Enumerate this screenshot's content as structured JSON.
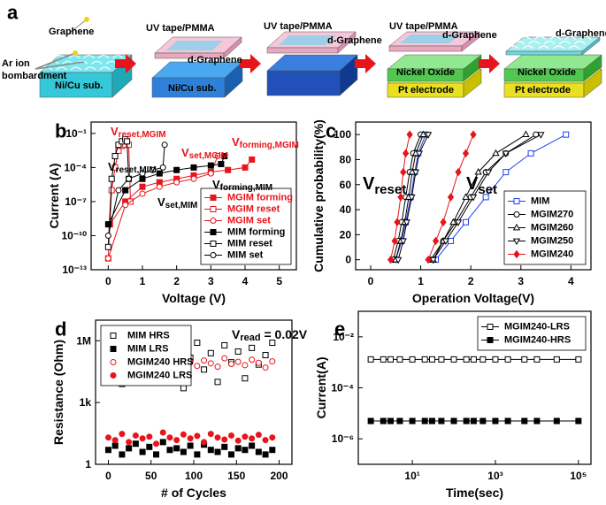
{
  "diagram": {
    "label": "a",
    "stages": [
      {
        "texts": [
          "Graphene",
          "Ar ion",
          "bombardment",
          "Ni/Cu sub."
        ]
      },
      {
        "texts": [
          "UV tape/PMMA",
          "d-Graphene",
          "Ni/Cu sub."
        ]
      },
      {
        "texts": [
          "UV tape/PMMA",
          "d-Graphene"
        ]
      },
      {
        "texts": [
          "UV tape/PMMA",
          "d-Graphene",
          "Nickel Oxide",
          "Pt electrode"
        ]
      },
      {
        "texts": [
          "d-Graphene",
          "Nickel Oxide",
          "Pt electrode"
        ]
      }
    ]
  },
  "chart_data": [
    {
      "type": "line",
      "label": "b",
      "x_label": "Voltage (V)",
      "y_label": "Current (A)",
      "xlim": [
        -0.5,
        5.5
      ],
      "xticks": [
        0,
        1,
        2,
        3,
        4,
        5
      ],
      "ylim": [
        1e-13,
        1
      ],
      "yscale": "log",
      "yticks": [
        {
          "value": 1e-13,
          "label": "10⁻¹³"
        },
        {
          "value": 1e-10,
          "label": "10⁻¹⁰"
        },
        {
          "value": 1e-07,
          "label": "10⁻⁷"
        },
        {
          "value": 0.0001,
          "label": "10⁻⁴"
        },
        {
          "value": 0.1,
          "label": "10⁻¹"
        }
      ],
      "legend": "lower right",
      "series": [
        {
          "name": "MGIM forming",
          "color": "#e8141b",
          "marker": "square",
          "filled": true,
          "x": [
            0.05,
            0.5,
            1,
            1.5,
            2,
            2.5,
            3,
            3.5,
            4,
            4.2
          ],
          "values": [
            1e-09,
            1e-07,
            2e-06,
            5e-06,
            1e-05,
            2e-05,
            4e-05,
            6e-05,
            0.0001,
            0.0005
          ]
        },
        {
          "name": "MGIM reset",
          "color": "#e8141b",
          "marker": "square",
          "filled": false,
          "x": [
            0,
            0.1,
            0.2,
            0.3,
            0.4,
            0.5,
            0.6,
            0.65
          ],
          "values": [
            1e-12,
            1e-06,
            0.0001,
            0.003,
            0.008,
            0.01,
            0.01,
            1e-07
          ]
        },
        {
          "name": "MGIM set",
          "color": "#e8141b",
          "marker": "circle",
          "filled": false,
          "x": [
            0,
            0.5,
            1,
            1.5,
            2,
            2.5,
            3,
            3.2
          ],
          "values": [
            1e-12,
            5e-08,
            5e-07,
            2e-06,
            5e-06,
            1e-05,
            3e-05,
            0.001
          ]
        },
        {
          "name": "MIM forming",
          "color": "#000000",
          "marker": "square",
          "filled": true,
          "x": [
            0,
            0.5,
            1,
            1.5,
            2,
            2.5,
            3,
            3.3,
            3.4
          ],
          "values": [
            1e-09,
            1e-06,
            1e-05,
            3e-05,
            6e-05,
            0.0001,
            0.00015,
            0.0002,
            0.001
          ]
        },
        {
          "name": "MIM reset",
          "color": "#000000",
          "marker": "square",
          "filled": false,
          "x": [
            0,
            0.1,
            0.2,
            0.3,
            0.4,
            0.5,
            0.55,
            0.6
          ],
          "values": [
            1e-11,
            1e-05,
            0.001,
            0.01,
            0.02,
            0.03,
            0.02,
            1e-05
          ]
        },
        {
          "name": "MIM set",
          "color": "#000000",
          "marker": "circle",
          "filled": false,
          "x": [
            0,
            0.3,
            0.6,
            1,
            1.3,
            1.6,
            1.65
          ],
          "values": [
            1e-10,
            1e-06,
            1e-05,
            3e-05,
            6e-05,
            0.0001,
            0.01
          ]
        }
      ],
      "annotations": [
        {
          "text": "V",
          "sub": "reset,MGIM",
          "color": "#e8141b"
        },
        {
          "text": "V",
          "sub": "set,MGIM",
          "color": "#e8141b"
        },
        {
          "text": "V",
          "sub": "forming,MGIM",
          "color": "#e8141b"
        },
        {
          "text": "V",
          "sub": "reset,MIM",
          "color": "#000000"
        },
        {
          "text": "V",
          "sub": "set,MIM",
          "color": "#000000"
        },
        {
          "text": "V",
          "sub": "forming,MIM",
          "color": "#000000"
        }
      ]
    },
    {
      "type": "line",
      "label": "c",
      "x_label": "Operation Voltage(V)",
      "y_label": "Cumulative probability(%)",
      "xlim": [
        -0.3,
        4.4
      ],
      "xticks": [
        0,
        1,
        2,
        3,
        4
      ],
      "ylim": [
        -8,
        110
      ],
      "yticks": [
        0,
        20,
        40,
        60,
        80,
        100
      ],
      "legend": "lower right",
      "series": [
        {
          "name": "MIM",
          "color": "#1f3ff0",
          "marker": "square",
          "filled": false,
          "x": [
            0.5,
            0.62,
            0.7,
            0.8,
            0.88,
            0.95,
            1.1,
            null,
            1.3,
            1.6,
            1.9,
            2.3,
            2.7,
            3.2,
            3.9
          ],
          "values": [
            0,
            15,
            30,
            50,
            70,
            85,
            100,
            null,
            0,
            15,
            30,
            50,
            70,
            85,
            100
          ]
        },
        {
          "name": "MGIM270",
          "color": "#000000",
          "marker": "circle",
          "filled": false,
          "x": [
            0.45,
            0.55,
            0.62,
            0.7,
            0.78,
            0.85,
            1.0,
            null,
            1.2,
            1.45,
            1.7,
            2.0,
            2.3,
            2.7,
            3.3
          ],
          "values": [
            0,
            15,
            30,
            50,
            70,
            85,
            100,
            null,
            0,
            15,
            30,
            50,
            70,
            85,
            100
          ]
        },
        {
          "name": "MGIM260",
          "color": "#000000",
          "marker": "triangle-up",
          "filled": false,
          "x": [
            0.5,
            0.6,
            0.68,
            0.76,
            0.83,
            0.9,
            1.05,
            null,
            1.25,
            1.45,
            1.65,
            1.9,
            2.15,
            2.5,
            3.1
          ],
          "values": [
            0,
            15,
            30,
            50,
            70,
            85,
            100,
            null,
            0,
            15,
            30,
            50,
            70,
            85,
            100
          ]
        },
        {
          "name": "MGIM250",
          "color": "#000000",
          "marker": "triangle-down",
          "filled": false,
          "x": [
            0.55,
            0.65,
            0.72,
            0.82,
            0.9,
            0.97,
            1.15,
            null,
            1.25,
            1.5,
            1.75,
            2.05,
            2.35,
            2.7,
            3.4
          ],
          "values": [
            0,
            15,
            30,
            50,
            70,
            85,
            100,
            null,
            0,
            15,
            30,
            50,
            70,
            85,
            100
          ]
        },
        {
          "name": "MGIM240",
          "color": "#e8141b",
          "marker": "diamond",
          "filled": true,
          "x": [
            0.4,
            0.48,
            0.53,
            0.6,
            0.65,
            0.7,
            0.78,
            null,
            1.15,
            1.3,
            1.45,
            1.6,
            1.75,
            1.9,
            2.05
          ],
          "values": [
            0,
            15,
            30,
            50,
            70,
            85,
            100,
            null,
            0,
            15,
            30,
            50,
            70,
            85,
            100
          ]
        }
      ],
      "annotations": [
        {
          "text": "V",
          "sub": "reset",
          "color": "#000000"
        },
        {
          "text": "V",
          "sub": "set",
          "color": "#000000"
        }
      ]
    },
    {
      "type": "scatter",
      "label": "d",
      "x_label": "# of Cycles",
      "y_label": "Resistance (Ohm)",
      "xlim": [
        -15,
        215
      ],
      "xticks": [
        0,
        50,
        100,
        150,
        200
      ],
      "ylim": [
        1,
        10000000
      ],
      "yscale": "log",
      "yticks": [
        1,
        {
          "value": 1000,
          "label": "1k"
        },
        {
          "value": 1000000,
          "label": "1M"
        }
      ],
      "legend": "upper left",
      "x": [
        0,
        8,
        16,
        24,
        32,
        40,
        48,
        56,
        64,
        72,
        80,
        88,
        96,
        104,
        112,
        120,
        128,
        136,
        144,
        152,
        160,
        168,
        176,
        184,
        192
      ],
      "series": [
        {
          "name": "MIM HRS",
          "color": "#000000",
          "marker": "square",
          "filled": false,
          "values": [
            50000,
            200000,
            8000,
            300000,
            30000,
            500000,
            100000,
            20000,
            700000,
            60000,
            400000,
            5000,
            150000,
            800000,
            40000,
            250000,
            10000,
            600000,
            90000,
            300000,
            15000,
            450000,
            70000,
            200000,
            800000
          ]
        },
        {
          "name": "MIM LRS",
          "color": "#000000",
          "marker": "square",
          "filled": true,
          "values": [
            5,
            8,
            3,
            6,
            10,
            4,
            7,
            3,
            12,
            5,
            6,
            4,
            8,
            3,
            9,
            5,
            4,
            7,
            3,
            6,
            5,
            8,
            4,
            3,
            5
          ]
        },
        {
          "name": "MGIM240 HRS",
          "color": "#e8141b",
          "marker": "circle",
          "filled": false,
          "values": [
            60000,
            90000,
            40000,
            120000,
            70000,
            50000,
            150000,
            80000,
            100000,
            45000,
            130000,
            70000,
            90000,
            60000,
            110000,
            80000,
            55000,
            140000,
            75000,
            95000,
            65000,
            120000,
            85000,
            50000,
            100000
          ]
        },
        {
          "name": "MGIM240 LRS",
          "color": "#e8141b",
          "marker": "circle",
          "filled": true,
          "values": [
            20,
            15,
            30,
            12,
            25,
            18,
            22,
            10,
            35,
            20,
            15,
            28,
            18,
            24,
            12,
            30,
            20,
            16,
            25,
            14,
            22,
            18,
            27,
            15,
            20
          ]
        }
      ],
      "annotations": [
        {
          "text": "V",
          "sub": "read",
          "after": " = 0.02V",
          "color": "#000000"
        }
      ]
    },
    {
      "type": "line",
      "label": "e",
      "x_label": "Time(sec)",
      "y_label": "Current(A)",
      "xlim": [
        0.5,
        200000
      ],
      "xscale": "log",
      "xticks": [
        {
          "value": 10,
          "label": "10¹"
        },
        {
          "value": 1000,
          "label": "10³"
        },
        {
          "value": 100000,
          "label": "10⁵"
        }
      ],
      "ylim": [
        1e-07,
        0.1
      ],
      "yscale": "log",
      "yticks": [
        {
          "value": 1e-06,
          "label": "10⁻⁶"
        },
        {
          "value": 0.0001,
          "label": "10⁻⁴"
        },
        {
          "value": 0.01,
          "label": "10⁻²"
        }
      ],
      "legend": "upper right",
      "x": [
        1,
        2,
        3,
        5,
        10,
        20,
        30,
        50,
        100,
        200,
        300,
        500,
        1000,
        2000,
        5000,
        10000,
        30000,
        100000
      ],
      "series": [
        {
          "name": "MGIM240-LRS",
          "color": "#000000",
          "marker": "square",
          "filled": false,
          "values": [
            0.0013,
            0.0013,
            0.0013,
            0.0013,
            0.0013,
            0.0013,
            0.0013,
            0.0013,
            0.0013,
            0.0013,
            0.0013,
            0.0013,
            0.0013,
            0.0013,
            0.0013,
            0.0013,
            0.0013,
            0.0013
          ]
        },
        {
          "name": "MGIM240-HRS",
          "color": "#000000",
          "marker": "square",
          "filled": true,
          "values": [
            5e-06,
            5e-06,
            5e-06,
            5e-06,
            5e-06,
            5e-06,
            5e-06,
            5e-06,
            5e-06,
            5e-06,
            5e-06,
            5e-06,
            5e-06,
            5e-06,
            5e-06,
            5e-06,
            5e-06,
            5e-06
          ]
        }
      ]
    }
  ]
}
